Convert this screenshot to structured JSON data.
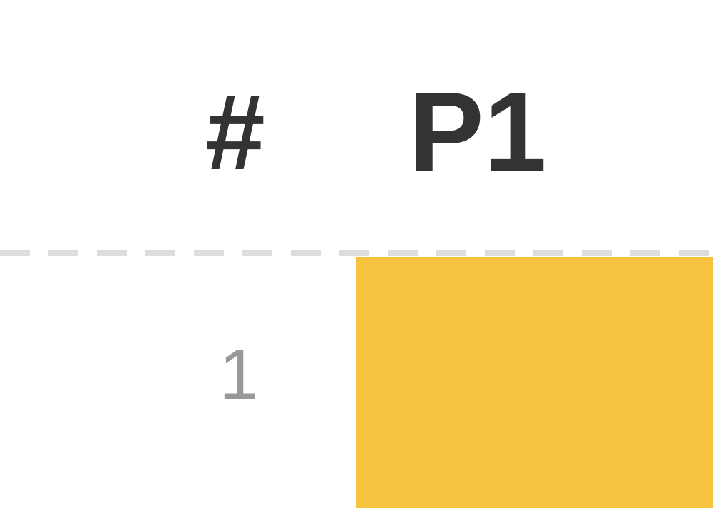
{
  "header": {
    "index_label": "#",
    "player_label": "P1"
  },
  "rows": [
    {
      "number": "1",
      "cells": [
        {
          "fill_color": "#F7C23D"
        }
      ]
    }
  ],
  "colors": {
    "header_text": "#333333",
    "row_number_text": "#999999",
    "divider": "#DDDDDD",
    "background": "#FFFFFF",
    "cell_fill": "#F7C23D"
  }
}
